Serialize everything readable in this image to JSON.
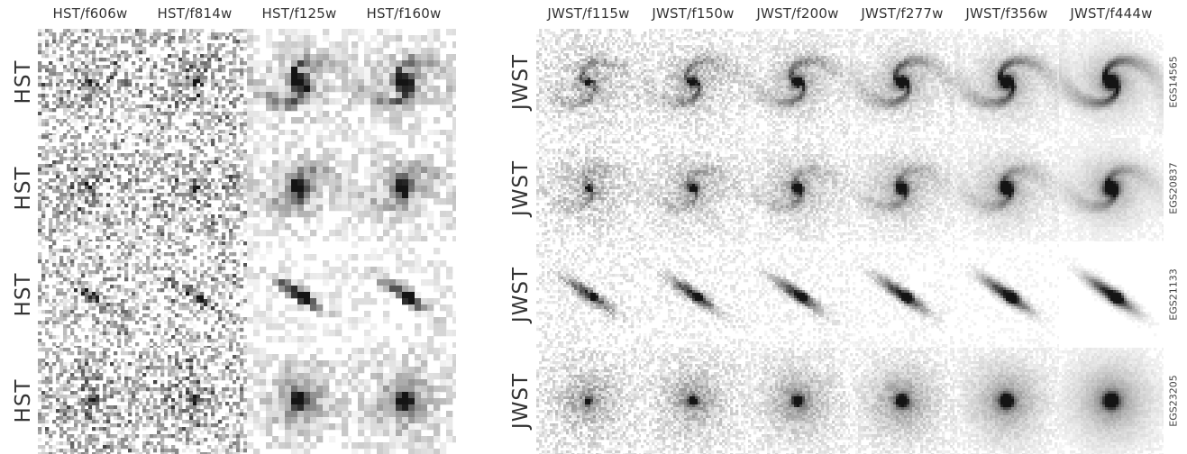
{
  "hst": {
    "filters": [
      "HST/f606w",
      "HST/f814w",
      "HST/f125w",
      "HST/f160w"
    ],
    "row_label": "HST"
  },
  "jwst": {
    "filters": [
      "JWST/f115w",
      "JWST/f150w",
      "JWST/f200w",
      "JWST/f277w",
      "JWST/f356w",
      "JWST/f444w"
    ],
    "row_label": "JWST"
  },
  "galaxies": [
    {
      "id": "EGS14565",
      "morphology": "spiral"
    },
    {
      "id": "EGS20837",
      "morphology": "spiral-diffuse"
    },
    {
      "id": "EGS21133",
      "morphology": "edge-on"
    },
    {
      "id": "EGS23205",
      "morphology": "compact-bulge"
    }
  ]
}
